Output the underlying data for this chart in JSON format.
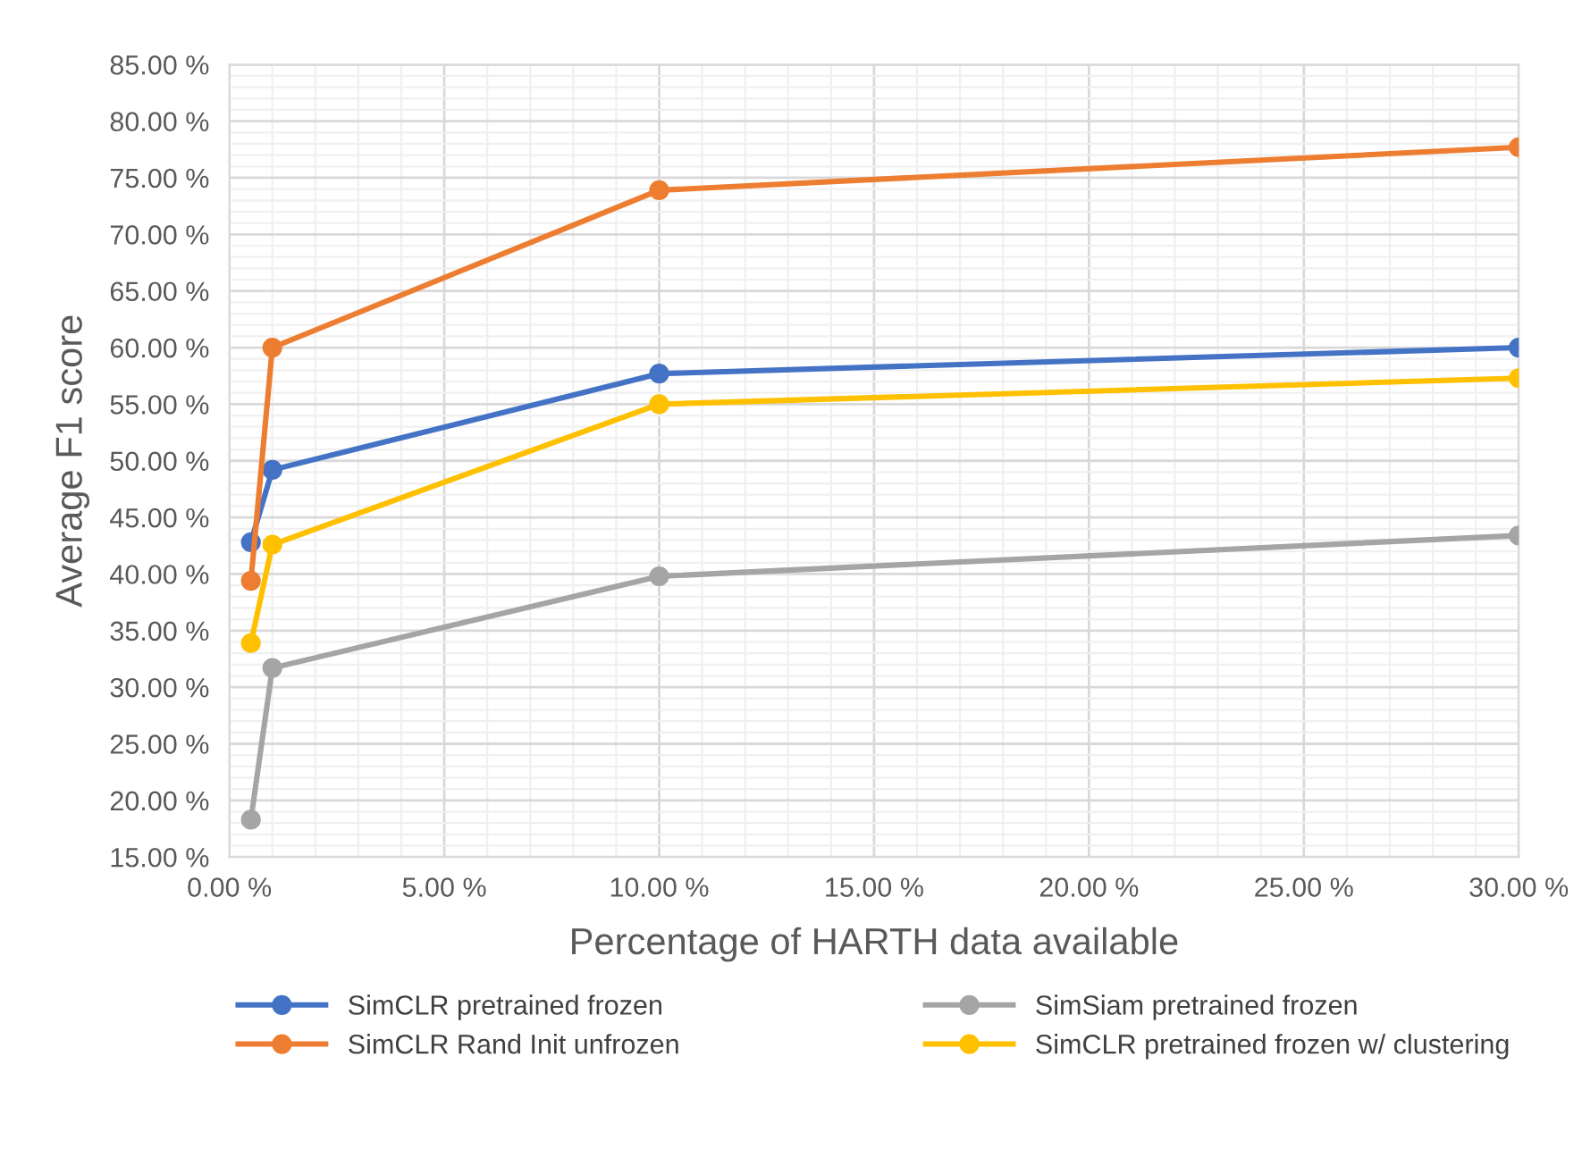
{
  "chart_data": {
    "type": "line",
    "xlabel": "Percentage of HARTH data available",
    "ylabel": "Average F1 score",
    "x": [
      0.5,
      1,
      10,
      30
    ],
    "series": [
      {
        "name": "SimCLR pretrained frozen",
        "color": "#4472c4",
        "values": [
          42.8,
          49.2,
          57.7,
          60.0
        ]
      },
      {
        "name": "SimCLR Rand Init unfrozen",
        "color": "#ed7d31",
        "values": [
          39.4,
          60.0,
          73.9,
          77.7
        ]
      },
      {
        "name": "SimSiam pretrained frozen",
        "color": "#a5a5a5",
        "values": [
          18.3,
          31.7,
          39.8,
          43.4
        ]
      },
      {
        "name": "SimCLR pretrained frozen w/ clustering",
        "color": "#ffc000",
        "values": [
          33.9,
          42.6,
          55.0,
          57.3
        ]
      }
    ],
    "xlim": [
      0,
      30
    ],
    "ylim": [
      15,
      85
    ],
    "xticks": [
      {
        "value": 0,
        "label": "0.00 %"
      },
      {
        "value": 5,
        "label": "5.00 %"
      },
      {
        "value": 10,
        "label": "10.00 %"
      },
      {
        "value": 15,
        "label": "15.00 %"
      },
      {
        "value": 20,
        "label": "20.00 %"
      },
      {
        "value": 25,
        "label": "25.00 %"
      },
      {
        "value": 30,
        "label": "30.00 %"
      }
    ],
    "yticks": [
      {
        "value": 15,
        "label": "15.00 %"
      },
      {
        "value": 20,
        "label": "20.00 %"
      },
      {
        "value": 25,
        "label": "25.00 %"
      },
      {
        "value": 30,
        "label": "30.00 %"
      },
      {
        "value": 35,
        "label": "35.00 %"
      },
      {
        "value": 40,
        "label": "40.00 %"
      },
      {
        "value": 45,
        "label": "45.00 %"
      },
      {
        "value": 50,
        "label": "50.00 %"
      },
      {
        "value": 55,
        "label": "55.00 %"
      },
      {
        "value": 60,
        "label": "60.00 %"
      },
      {
        "value": 65,
        "label": "65.00 %"
      },
      {
        "value": 70,
        "label": "70.00 %"
      },
      {
        "value": 75,
        "label": "75.00 %"
      },
      {
        "value": 80,
        "label": "80.00 %"
      },
      {
        "value": 85,
        "label": "85.00 %"
      }
    ],
    "grid": true,
    "legend": "bottom",
    "marker": "circle",
    "line_style": "solid"
  }
}
